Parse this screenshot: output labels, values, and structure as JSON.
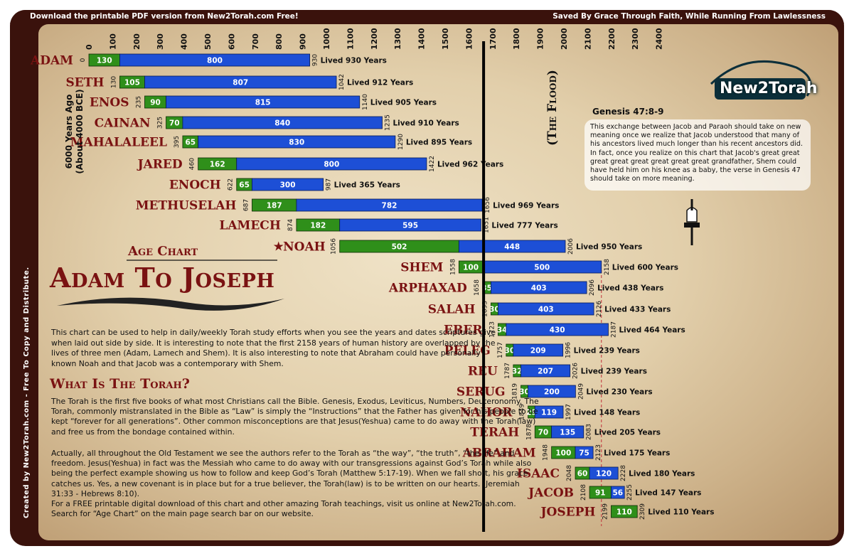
{
  "header": {
    "left": "Download the printable PDF version from New2Torah.com Free!",
    "right": "Saved By Grace Through Faith, While Running From Lawlessness"
  },
  "side_credit": "Created by New2Torah.com - Free To Copy and Distribute.",
  "logo": "New2Torah",
  "years_ago": [
    "6000 Years Ago",
    "(About 4000 BCE)"
  ],
  "flood_label": "(The Flood)",
  "genesis": {
    "title": "Genesis 47:8-9",
    "text": "This exchange between Jacob and Paraoh should take on new meaning once we realize that Jacob understood that many of his ancestors lived much longer than his recent ancestors did.  In fact, once you realize on this chart that Jacob's great great great great great great great great grandfather, Shem could have held him on his knee as a baby, the verse in Genesis 47 should take on more meaning."
  },
  "age_chart_label": "Age Chart",
  "main_title": "Adam To Joseph",
  "intro_text": "This chart can be used to help in daily/weekly Torah study efforts when you see the years and dates scriptures give when laid out side by side. It is interesting to note that the first 2158 years of human history are overlapped by the lives of three men (Adam, Lamech and Shem). It is also interesting to note that Abraham could have personally known Noah and that Jacob was a contemporary with Shem.",
  "torah_heading": "What Is The Torah?",
  "para1": "The Torah is the first five books of what most Christians call the Bible. Genesis, Exodus, Leviticus, Numbers, Deuteronomy. The Torah, commonly mistranslated in the Bible as “Law” is simply the “Instructions” that the Father has given for his people to be kept “forever for all generations”. Other common misconceptions are that Jesus(Yeshua) came to do away with the Torah(law) and free us from the bondage contained within.",
  "para2": "Actually, all throughout the Old Testament we see the authors refer to the Torah as “the way”, “the truth”, “the life” and freedom. Jesus(Yeshua) in fact was the Messiah who came to do away with our transgressions against God’s Torah while also being the perfect example showing us how to follow and keep God’s Torah (Matthew 5:17-19). When we fall short, his grace catches us. Yes, a new covenant is in place but for a true believer, the Torah(law) is to be written on our hearts. (Jeremiah 31:33 - Hebrews 8:10).",
  "para3": "For a FREE printable digital download of this chart and other amazing Torah teachings, visit us online at New2Torah.com. Search for “Age Chart” on the main page search bar on our website.",
  "chart_data": {
    "type": "bar",
    "orientation": "horizontal-timeline",
    "x_axis": {
      "min": 0,
      "max": 2400,
      "ticks": [
        0,
        100,
        200,
        300,
        400,
        500,
        600,
        700,
        800,
        900,
        1000,
        1100,
        1200,
        1300,
        1400,
        1500,
        1600,
        1700,
        1800,
        1900,
        2000,
        2100,
        2200,
        2300,
        2400
      ]
    },
    "flood_year": 1656,
    "colors": {
      "before_son": "#2f8f1a",
      "after_son": "#1d4fd6",
      "flood_line": "#000000",
      "name": "#7a1212"
    },
    "people": [
      {
        "name": "ADAM",
        "birth": 0,
        "before_son": 130,
        "after_son": 800,
        "death": 930,
        "lived": "Lived 930 Years"
      },
      {
        "name": "SETH",
        "birth": 130,
        "before_son": 105,
        "after_son": 807,
        "death": 1042,
        "lived": "Lived 912 Years"
      },
      {
        "name": "ENOS",
        "birth": 235,
        "before_son": 90,
        "after_son": 815,
        "death": 1140,
        "lived": "Lived 905 Years"
      },
      {
        "name": "CAINAN",
        "birth": 325,
        "before_son": 70,
        "after_son": 840,
        "death": 1235,
        "lived": "Lived 910 Years"
      },
      {
        "name": "MAHALALEEL",
        "birth": 395,
        "before_son": 65,
        "after_son": 830,
        "death": 1290,
        "lived": "Lived 895 Years"
      },
      {
        "name": "JARED",
        "birth": 460,
        "before_son": 162,
        "after_son": 800,
        "death": 1422,
        "lived": "Lived 962 Years"
      },
      {
        "name": "ENOCH",
        "birth": 622,
        "before_son": 65,
        "after_son": 300,
        "death": 987,
        "lived": "Lived 365 Years"
      },
      {
        "name": "METHUSELAH",
        "birth": 687,
        "before_son": 187,
        "after_son": 782,
        "death": 1656,
        "lived": "Lived 969 Years"
      },
      {
        "name": "LAMECH",
        "birth": 874,
        "before_son": 182,
        "after_son": 595,
        "death": 1651,
        "lived": "Lived 777 Years"
      },
      {
        "name": "NOAH",
        "birth": 1056,
        "before_son": 502,
        "after_son": 448,
        "death": 2006,
        "lived": "Lived 950 Years",
        "star": true
      },
      {
        "name": "SHEM",
        "birth": 1558,
        "before_son": 100,
        "after_son": 500,
        "death": 2158,
        "lived": "Lived 600 Years"
      },
      {
        "name": "ARPHAXAD",
        "birth": 1658,
        "before_son": 35,
        "after_son": 403,
        "death": 2096,
        "lived": "Lived 438 Years"
      },
      {
        "name": "SALAH",
        "birth": 1693,
        "before_son": 30,
        "after_son": 403,
        "death": 2126,
        "lived": "Lived 433 Years"
      },
      {
        "name": "EBER",
        "birth": 1723,
        "before_son": 34,
        "after_son": 430,
        "death": 2187,
        "lived": "Lived 464 Years"
      },
      {
        "name": "PELEG",
        "birth": 1757,
        "before_son": 30,
        "after_son": 209,
        "death": 1996,
        "lived": "Lived 239 Years"
      },
      {
        "name": "REU",
        "birth": 1787,
        "before_son": 32,
        "after_son": 207,
        "death": 2026,
        "lived": "Lived 239 Years"
      },
      {
        "name": "SERUG",
        "birth": 1819,
        "before_son": 30,
        "after_son": 200,
        "death": 2049,
        "lived": "Lived 230 Years"
      },
      {
        "name": "NAHOR",
        "birth": 1849,
        "before_son": 29,
        "after_son": 119,
        "death": 1997,
        "lived": "Lived 148 Years"
      },
      {
        "name": "TERAH",
        "birth": 1878,
        "before_son": 70,
        "after_son": 135,
        "death": 2083,
        "lived": "Lived 205 Years"
      },
      {
        "name": "ABRAHAM",
        "birth": 1948,
        "before_son": 100,
        "after_son": 75,
        "death": 2123,
        "lived": "Lived 175 Years"
      },
      {
        "name": "ISAAC",
        "birth": 2048,
        "before_son": 60,
        "after_son": 120,
        "death": 2228,
        "lived": "Lived 180 Years"
      },
      {
        "name": "JACOB",
        "birth": 2108,
        "before_son": 91,
        "after_son": 56,
        "death": 2255,
        "lived": "Lived 147 Years"
      },
      {
        "name": "JOSEPH",
        "birth": 2199,
        "before_son": 110,
        "after_son": null,
        "death": 2309,
        "lived": "Lived 110 Years"
      }
    ]
  }
}
